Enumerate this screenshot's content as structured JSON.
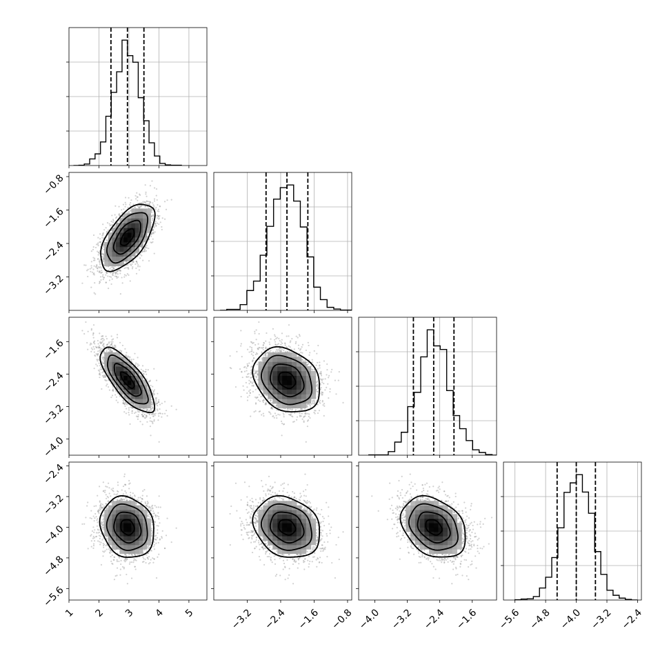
{
  "chart_data": {
    "type": "corner",
    "dimensions": [
      {
        "name": "",
        "mean": 2.95,
        "std": 0.45,
        "range": [
          1.0,
          5.6
        ],
        "quantiles": [
          2.4,
          2.95,
          3.5
        ],
        "ticks": [
          1,
          2,
          3,
          4,
          5
        ],
        "tick_labels": [
          "1",
          "2",
          "3",
          "4",
          "5"
        ]
      },
      {
        "name": "",
        "mean": -2.25,
        "std": 0.4,
        "range": [
          -4.0,
          -0.7
        ],
        "quantiles": [
          -2.75,
          -2.25,
          -1.75
        ],
        "ticks": [
          -3.2,
          -2.4,
          -1.6,
          -0.8
        ],
        "tick_labels": [
          "−3.2",
          "−2.4",
          "−1.6",
          "−0.8"
        ]
      },
      {
        "name": "",
        "mean": -2.55,
        "std": 0.4,
        "range": [
          -4.4,
          -1.0
        ],
        "quantiles": [
          -3.05,
          -2.55,
          -2.05
        ],
        "ticks": [
          -4.0,
          -3.2,
          -2.4,
          -1.6
        ],
        "tick_labels": [
          "−4.0",
          "−3.2",
          "−2.4",
          "−1.6"
        ]
      },
      {
        "name": "",
        "mean": -4.0,
        "std": 0.4,
        "range": [
          -5.9,
          -2.3
        ],
        "quantiles": [
          -4.5,
          -4.0,
          -3.5
        ],
        "ticks": [
          -5.6,
          -4.8,
          -4.0,
          -3.2,
          -2.4
        ],
        "tick_labels": [
          "−5.6",
          "−4.8",
          "−4.0",
          "−3.2",
          "−2.4"
        ]
      }
    ],
    "correlations": [
      {
        "x": 0,
        "y": 1,
        "rho": 0.6
      },
      {
        "x": 0,
        "y": 2,
        "rho": -0.75
      },
      {
        "x": 1,
        "y": 2,
        "rho": -0.25
      },
      {
        "x": 0,
        "y": 3,
        "rho": -0.15
      },
      {
        "x": 1,
        "y": 3,
        "rho": -0.2
      },
      {
        "x": 2,
        "y": 3,
        "rho": -0.3
      }
    ],
    "histogram_bins": 20,
    "contour_levels_sigma": [
      0.5,
      1.0,
      1.5,
      2.0
    ],
    "quantiles_shown": [
      0.16,
      0.5,
      0.84
    ],
    "grid": true,
    "colors": {
      "line": "#000000",
      "grid": "#b0b0b0",
      "points": "#9a9a9a",
      "density": "#000000"
    }
  }
}
